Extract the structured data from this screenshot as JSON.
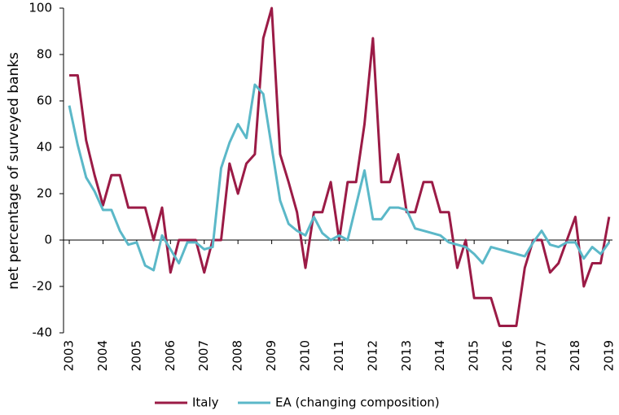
{
  "chart_data": {
    "type": "line",
    "y_label": "net percentage of surveyed banks",
    "x": [
      2003,
      2003.25,
      2003.5,
      2003.75,
      2004,
      2004.25,
      2004.5,
      2004.75,
      2005,
      2005.25,
      2005.5,
      2005.75,
      2006,
      2006.25,
      2006.5,
      2006.75,
      2007,
      2007.25,
      2007.5,
      2007.75,
      2008,
      2008.25,
      2008.5,
      2008.75,
      2009,
      2009.25,
      2009.5,
      2009.75,
      2010,
      2010.25,
      2010.5,
      2010.75,
      2011,
      2011.25,
      2011.5,
      2011.75,
      2012,
      2012.25,
      2012.5,
      2012.75,
      2013,
      2013.25,
      2013.5,
      2013.75,
      2014,
      2014.25,
      2014.5,
      2014.75,
      2015,
      2015.25,
      2015.5,
      2015.75,
      2016,
      2016.25,
      2016.5,
      2016.75,
      2017,
      2017.25,
      2017.5,
      2017.75,
      2018,
      2018.25,
      2018.5,
      2018.75,
      2019
    ],
    "series": [
      {
        "name": "Italy",
        "color": "#9b1b46",
        "values": [
          71,
          71,
          43,
          28,
          15,
          28,
          28,
          14,
          14,
          14,
          0,
          14,
          -14,
          0,
          0,
          0,
          -14,
          0,
          0,
          33,
          20,
          33,
          37,
          87,
          100,
          37,
          25,
          12,
          -12,
          12,
          12,
          25,
          0,
          25,
          25,
          50,
          87,
          25,
          25,
          37,
          12,
          12,
          25,
          25,
          12,
          12,
          -12,
          0,
          -25,
          -25,
          -25,
          -37,
          -37,
          -37,
          -12,
          0,
          0,
          -14,
          -10,
          0,
          10,
          -20,
          -10,
          -10,
          10
        ]
      },
      {
        "name": "EA (changing composition)",
        "color": "#5bb8c8",
        "values": [
          58,
          41,
          27,
          21,
          13,
          13,
          4,
          -2,
          -1,
          -11,
          -13,
          2,
          -4,
          -10,
          -1,
          -1,
          -4,
          -3,
          31,
          42,
          50,
          44,
          67,
          63,
          40,
          17,
          7,
          4,
          2,
          10,
          3,
          0,
          2,
          0,
          15,
          30,
          9,
          9,
          14,
          14,
          13,
          5,
          4,
          3,
          2,
          -1,
          -2,
          -3,
          -6,
          -10,
          -3,
          -4,
          -5,
          -6,
          -7,
          -1,
          4,
          -2,
          -3,
          -1,
          -1,
          -8,
          -3,
          -6,
          -1
        ]
      }
    ],
    "xlim": [
      2002.83,
      2019.1
    ],
    "xticks": [
      2003,
      2004,
      2005,
      2006,
      2007,
      2008,
      2009,
      2010,
      2011,
      2012,
      2013,
      2014,
      2015,
      2016,
      2017,
      2018,
      2019
    ],
    "ylim": [
      -40,
      100
    ],
    "yticks": [
      -40,
      -20,
      0,
      20,
      40,
      60,
      80,
      100
    ],
    "grid": false
  }
}
